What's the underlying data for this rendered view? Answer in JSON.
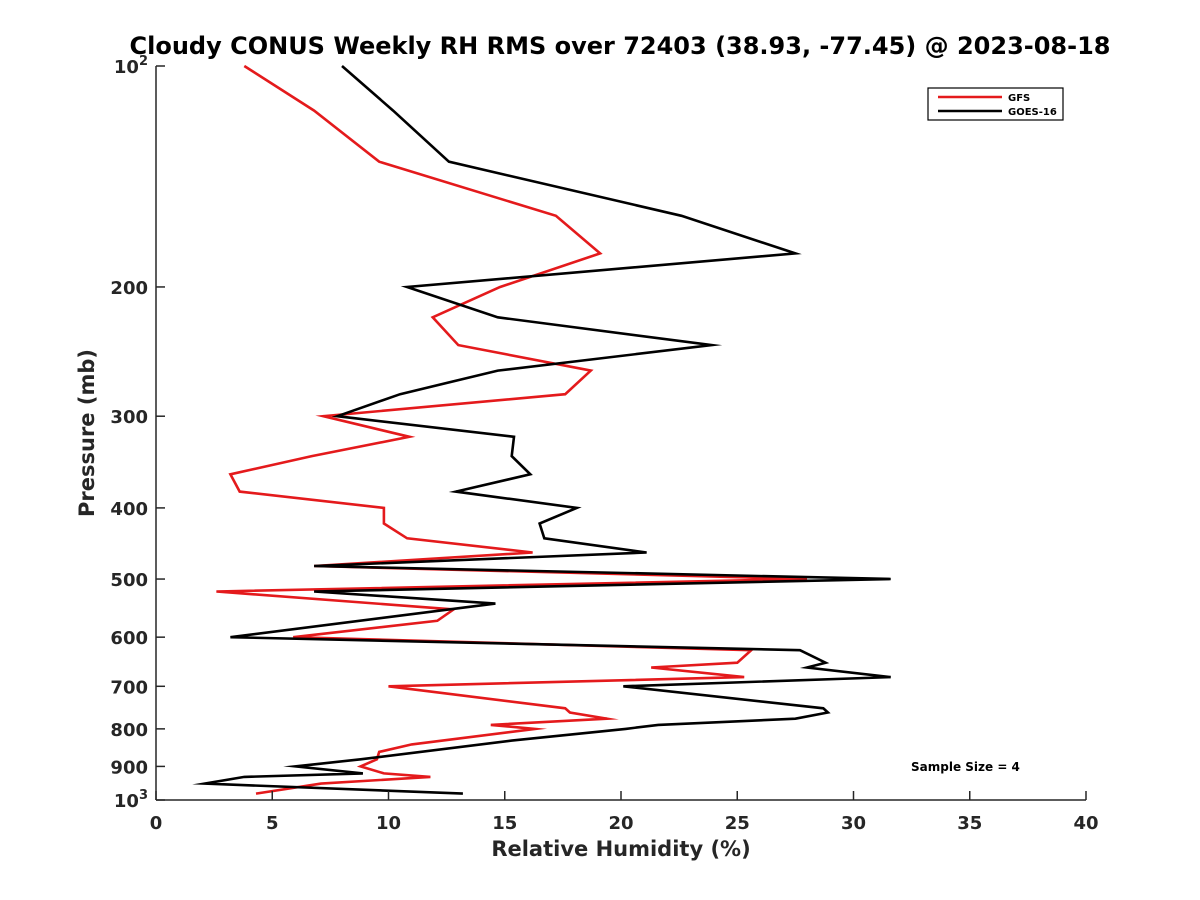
{
  "chart_data": {
    "type": "line",
    "title": "Cloudy CONUS Weekly RH RMS over 72403 (38.93, -77.45) @ 2023-08-18",
    "xlabel": "Relative Humidity (%)",
    "ylabel": "Pressure (mb)",
    "xlim": [
      0,
      40
    ],
    "ylim": [
      100,
      1000
    ],
    "yscale": "log",
    "y_reversed": true,
    "grid": false,
    "legend_position": "top-right",
    "x_ticks": [
      0,
      5,
      10,
      15,
      20,
      25,
      30,
      35,
      40
    ],
    "y_ticks": [
      {
        "value": 100,
        "base": "10",
        "exp": "2"
      },
      {
        "value": 200,
        "label": "200"
      },
      {
        "value": 300,
        "label": "300"
      },
      {
        "value": 400,
        "label": "400"
      },
      {
        "value": 500,
        "label": "500"
      },
      {
        "value": 600,
        "label": "600"
      },
      {
        "value": 700,
        "label": "700"
      },
      {
        "value": 800,
        "label": "800"
      },
      {
        "value": 900,
        "label": "900"
      },
      {
        "value": 1000,
        "base": "10",
        "exp": "3"
      }
    ],
    "annotation": "Sample Size = 4",
    "series": [
      {
        "name": "GFS",
        "color": "#e41a1c",
        "points": [
          [
            3.8,
            100
          ],
          [
            6.8,
            115
          ],
          [
            9.6,
            135
          ],
          [
            17.2,
            160
          ],
          [
            19.1,
            180
          ],
          [
            14.8,
            200
          ],
          [
            11.9,
            220
          ],
          [
            13.0,
            240
          ],
          [
            18.7,
            260
          ],
          [
            17.6,
            280
          ],
          [
            7.2,
            300
          ],
          [
            10.9,
            320
          ],
          [
            6.7,
            340
          ],
          [
            3.2,
            360
          ],
          [
            3.6,
            380
          ],
          [
            9.8,
            400
          ],
          [
            9.8,
            420
          ],
          [
            10.8,
            440
          ],
          [
            16.2,
            460
          ],
          [
            6.8,
            480
          ],
          [
            28.0,
            500
          ],
          [
            2.6,
            520
          ],
          [
            12.8,
            550
          ],
          [
            12.1,
            570
          ],
          [
            5.9,
            600
          ],
          [
            25.6,
            625
          ],
          [
            25.0,
            650
          ],
          [
            21.3,
            660
          ],
          [
            25.3,
            680
          ],
          [
            10.0,
            700
          ],
          [
            17.6,
            750
          ],
          [
            17.8,
            760
          ],
          [
            19.4,
            775
          ],
          [
            14.4,
            790
          ],
          [
            16.3,
            800
          ],
          [
            11.0,
            840
          ],
          [
            9.6,
            860
          ],
          [
            9.5,
            880
          ],
          [
            8.8,
            900
          ],
          [
            9.8,
            920
          ],
          [
            11.8,
            930
          ],
          [
            7.1,
            950
          ],
          [
            4.3,
            980
          ]
        ]
      },
      {
        "name": "GOES-16",
        "color": "#000000",
        "points": [
          [
            8.0,
            100
          ],
          [
            10.2,
            115
          ],
          [
            12.6,
            135
          ],
          [
            22.6,
            160
          ],
          [
            27.5,
            180
          ],
          [
            10.8,
            200
          ],
          [
            14.7,
            220
          ],
          [
            23.9,
            240
          ],
          [
            14.7,
            260
          ],
          [
            10.5,
            280
          ],
          [
            7.8,
            300
          ],
          [
            15.4,
            320
          ],
          [
            15.3,
            340
          ],
          [
            16.1,
            360
          ],
          [
            12.9,
            380
          ],
          [
            18.1,
            400
          ],
          [
            16.5,
            420
          ],
          [
            16.7,
            440
          ],
          [
            21.1,
            460
          ],
          [
            6.8,
            480
          ],
          [
            31.6,
            500
          ],
          [
            6.8,
            520
          ],
          [
            14.6,
            540
          ],
          [
            3.2,
            600
          ],
          [
            27.7,
            625
          ],
          [
            28.8,
            650
          ],
          [
            28.0,
            660
          ],
          [
            31.6,
            680
          ],
          [
            20.1,
            700
          ],
          [
            28.7,
            750
          ],
          [
            28.9,
            760
          ],
          [
            27.5,
            775
          ],
          [
            21.6,
            790
          ],
          [
            20.2,
            800
          ],
          [
            15.3,
            830
          ],
          [
            8.8,
            880
          ],
          [
            6.0,
            900
          ],
          [
            8.9,
            920
          ],
          [
            3.8,
            930
          ],
          [
            2.1,
            950
          ],
          [
            13.2,
            980
          ]
        ]
      }
    ]
  }
}
